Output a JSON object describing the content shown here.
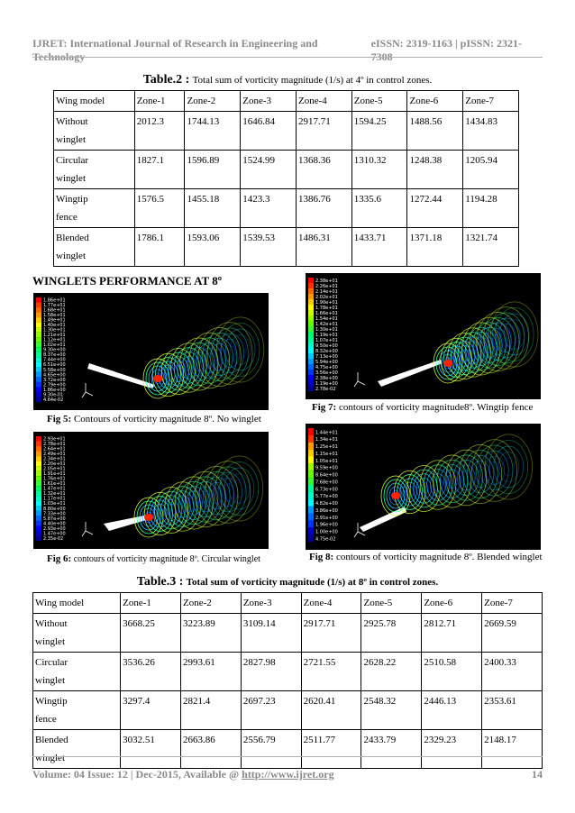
{
  "header": {
    "journal": "IJRET: International Journal of Research in Engineering and Technology",
    "issn": "eISSN: 2319-1163 | pISSN: 2321-7308"
  },
  "table2": {
    "caption_bold": "Table.2 :",
    "caption_text": "Total sum of vorticity magnitude (1/s) at 4º in control zones.",
    "headers": [
      "Wing model",
      "Zone-1",
      "Zone-2",
      "Zone-3",
      "Zone-4",
      "Zone-5",
      "Zone-6",
      "Zone-7"
    ],
    "rows": [
      {
        "model_l1": "Without",
        "model_l2": "winglet",
        "values": [
          "2012.3",
          "1744.13",
          "1646.84",
          "2917.71",
          "1594.25",
          "1488.56",
          "1434.83"
        ]
      },
      {
        "model_l1": "Circular",
        "model_l2": "winglet",
        "values": [
          "1827.1",
          "1596.89",
          "1524.99",
          "1368.36",
          "1310.32",
          "1248.38",
          "1205.94"
        ]
      },
      {
        "model_l1": "Wingtip",
        "model_l2": "fence",
        "values": [
          "1576.5",
          "1455.18",
          "1423.3",
          "1386.76",
          "1335.6",
          "1272.44",
          "1194.28"
        ]
      },
      {
        "model_l1": "Blended",
        "model_l2": "winglet",
        "values": [
          "1786.1",
          "1593.06",
          "1539.53",
          "1486.31",
          "1433.71",
          "1371.18",
          "1321.74"
        ]
      }
    ]
  },
  "section_title": "WINGLETS PERFORMANCE AT 8º",
  "figures": {
    "fig5": {
      "label": "Fig 5:",
      "text": " Contours of vorticity magnitude 8º. No winglet",
      "legend": [
        "1.86e+01",
        "1.77e+01",
        "1.68e+01",
        "1.58e+01",
        "1.49e+01",
        "1.40e+01",
        "1.30e+01",
        "1.21e+01",
        "1.12e+01",
        "1.02e+01",
        "9.30e+00",
        "8.37e+00",
        "7.44e+00",
        "6.51e+00",
        "5.58e+00",
        "4.65e+00",
        "3.72e+00",
        "2.79e+00",
        "1.86e+00",
        "9.30e-01",
        "4.64e-02"
      ]
    },
    "fig7": {
      "label": "Fig 7:",
      "text": " contours of vorticity magnitude8º. Wingtip fence",
      "legend": [
        "2.38e+01",
        "2.26e+01",
        "2.14e+01",
        "2.02e+01",
        "1.90e+01",
        "1.78e+01",
        "1.66e+01",
        "1.54e+01",
        "1.42e+01",
        "1.30e+01",
        "1.19e+01",
        "1.07e+01",
        "9.50e+00",
        "8.32e+00",
        "7.13e+00",
        "5.94e+00",
        "4.75e+00",
        "3.56e+00",
        "2.38e+00",
        "1.19e+00",
        "2.78e-02"
      ]
    },
    "fig6": {
      "label": "Fig 6:",
      "text": " contours of vorticity magnitude 8º. Circular winglet",
      "legend": [
        "2.93e+01",
        "2.78e+01",
        "2.64e+01",
        "2.49e+01",
        "2.34e+01",
        "2.20e+01",
        "2.05e+01",
        "1.91e+01",
        "1.76e+01",
        "1.61e+01",
        "1.47e+01",
        "1.32e+01",
        "1.17e+01",
        "1.03e+01",
        "8.80e+00",
        "7.33e+00",
        "5.87e+00",
        "4.40e+00",
        "2.93e+00",
        "1.47e+00",
        "2.35e-02"
      ]
    },
    "fig8": {
      "label": "Fig 8:",
      "text": " contours of vorticity magnitude 8º. Blended winglet",
      "legend": [
        "1.44e+01",
        "1.34e+01",
        "1.25e+01",
        "1.15e+01",
        "1.05e+01",
        "9.59e+00",
        "8.64e+00",
        "7.68e+00",
        "6.73e+00",
        "5.77e+00",
        "4.82e+00",
        "3.86e+00",
        "2.91e+00",
        "1.96e+00",
        "1.00e+00",
        "4.75e-02"
      ]
    }
  },
  "table3": {
    "caption_bold": "Table.3 :",
    "caption_text": "Total sum of vorticity magnitude (1/s) at 8º in control zones.",
    "headers": [
      "Wing model",
      "Zone-1",
      "Zone-2",
      "Zone-3",
      "Zone-4",
      "Zone-5",
      "Zone-6",
      "Zone-7"
    ],
    "rows": [
      {
        "model_l1": "Without",
        "model_l2": "winglet",
        "values": [
          "3668.25",
          "3223.89",
          "3109.14",
          "2917.71",
          "2925.78",
          "2812.71",
          "2669.59"
        ]
      },
      {
        "model_l1": "Circular",
        "model_l2": "winglet",
        "values": [
          "3536.26",
          "2993.61",
          "2827.98",
          "2721.55",
          "2628.22",
          "2510.58",
          "2400.33"
        ]
      },
      {
        "model_l1": "Wingtip",
        "model_l2": "fence",
        "values": [
          "3297.4",
          "2821.4",
          "2697.23",
          "2620.41",
          "2548.32",
          "2446.13",
          "2353.61"
        ]
      },
      {
        "model_l1": "Blended",
        "model_l2": "winglet",
        "values": [
          "3032.51",
          "2663.86",
          "2556.79",
          "2511.77",
          "2433.79",
          "2329.23",
          "2148.17"
        ]
      }
    ]
  },
  "footer": {
    "left": "Volume: 04 Issue: 12 | Dec-2015, Available @ ",
    "link": "http://www.ijret.org",
    "page": "14"
  }
}
